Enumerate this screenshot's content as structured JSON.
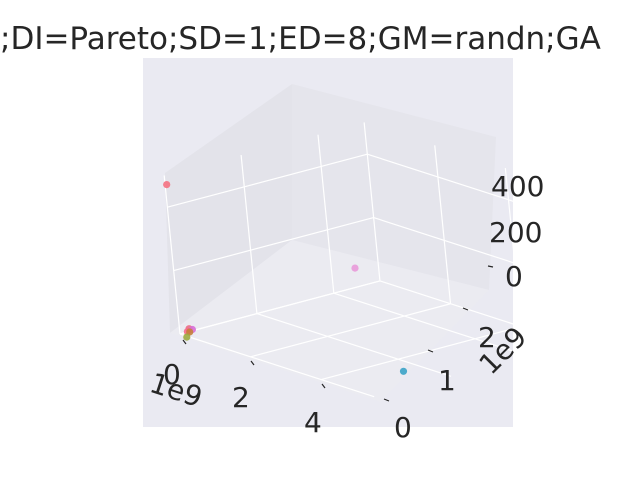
{
  "chart_data": {
    "type": "scatter",
    "title": ";DI=Pareto;SD=1;ED=8;GM=randn;GA",
    "projection": "3d",
    "grid": true,
    "background": "#eaeaf2",
    "x_axis": {
      "ticks": [
        "0",
        "2",
        "4"
      ],
      "offset_label": "1e9",
      "range": [
        0,
        5.5
      ]
    },
    "y_axis": {
      "ticks": [
        "0",
        "1",
        "2"
      ],
      "offset_label": "1e9",
      "range": [
        0,
        2.6
      ]
    },
    "z_axis": {
      "ticks": [
        "0",
        "200",
        "400"
      ],
      "range": [
        0,
        500
      ]
    },
    "points": [
      {
        "x": 0.0,
        "y": 0.02,
        "z": 470,
        "color": "#f47182"
      },
      {
        "x": 0.05,
        "y": 0.1,
        "z": 12,
        "color": "#ec6d86"
      },
      {
        "x": 0.1,
        "y": 0.12,
        "z": 10,
        "color": "#d86fd7"
      },
      {
        "x": 0.04,
        "y": 0.08,
        "z": 4,
        "color": "#f76a8c"
      },
      {
        "x": 0.06,
        "y": 0.1,
        "z": 2,
        "color": "#c4813a"
      },
      {
        "x": 0.05,
        "y": 0.06,
        "z": -12,
        "color": "#9dab41"
      },
      {
        "x": 0.0,
        "y": 2.3,
        "z": 60,
        "color": "#e99ad9"
      },
      {
        "x": 4.7,
        "y": 0.75,
        "z": 3,
        "color": "#3ba3c7"
      }
    ]
  }
}
